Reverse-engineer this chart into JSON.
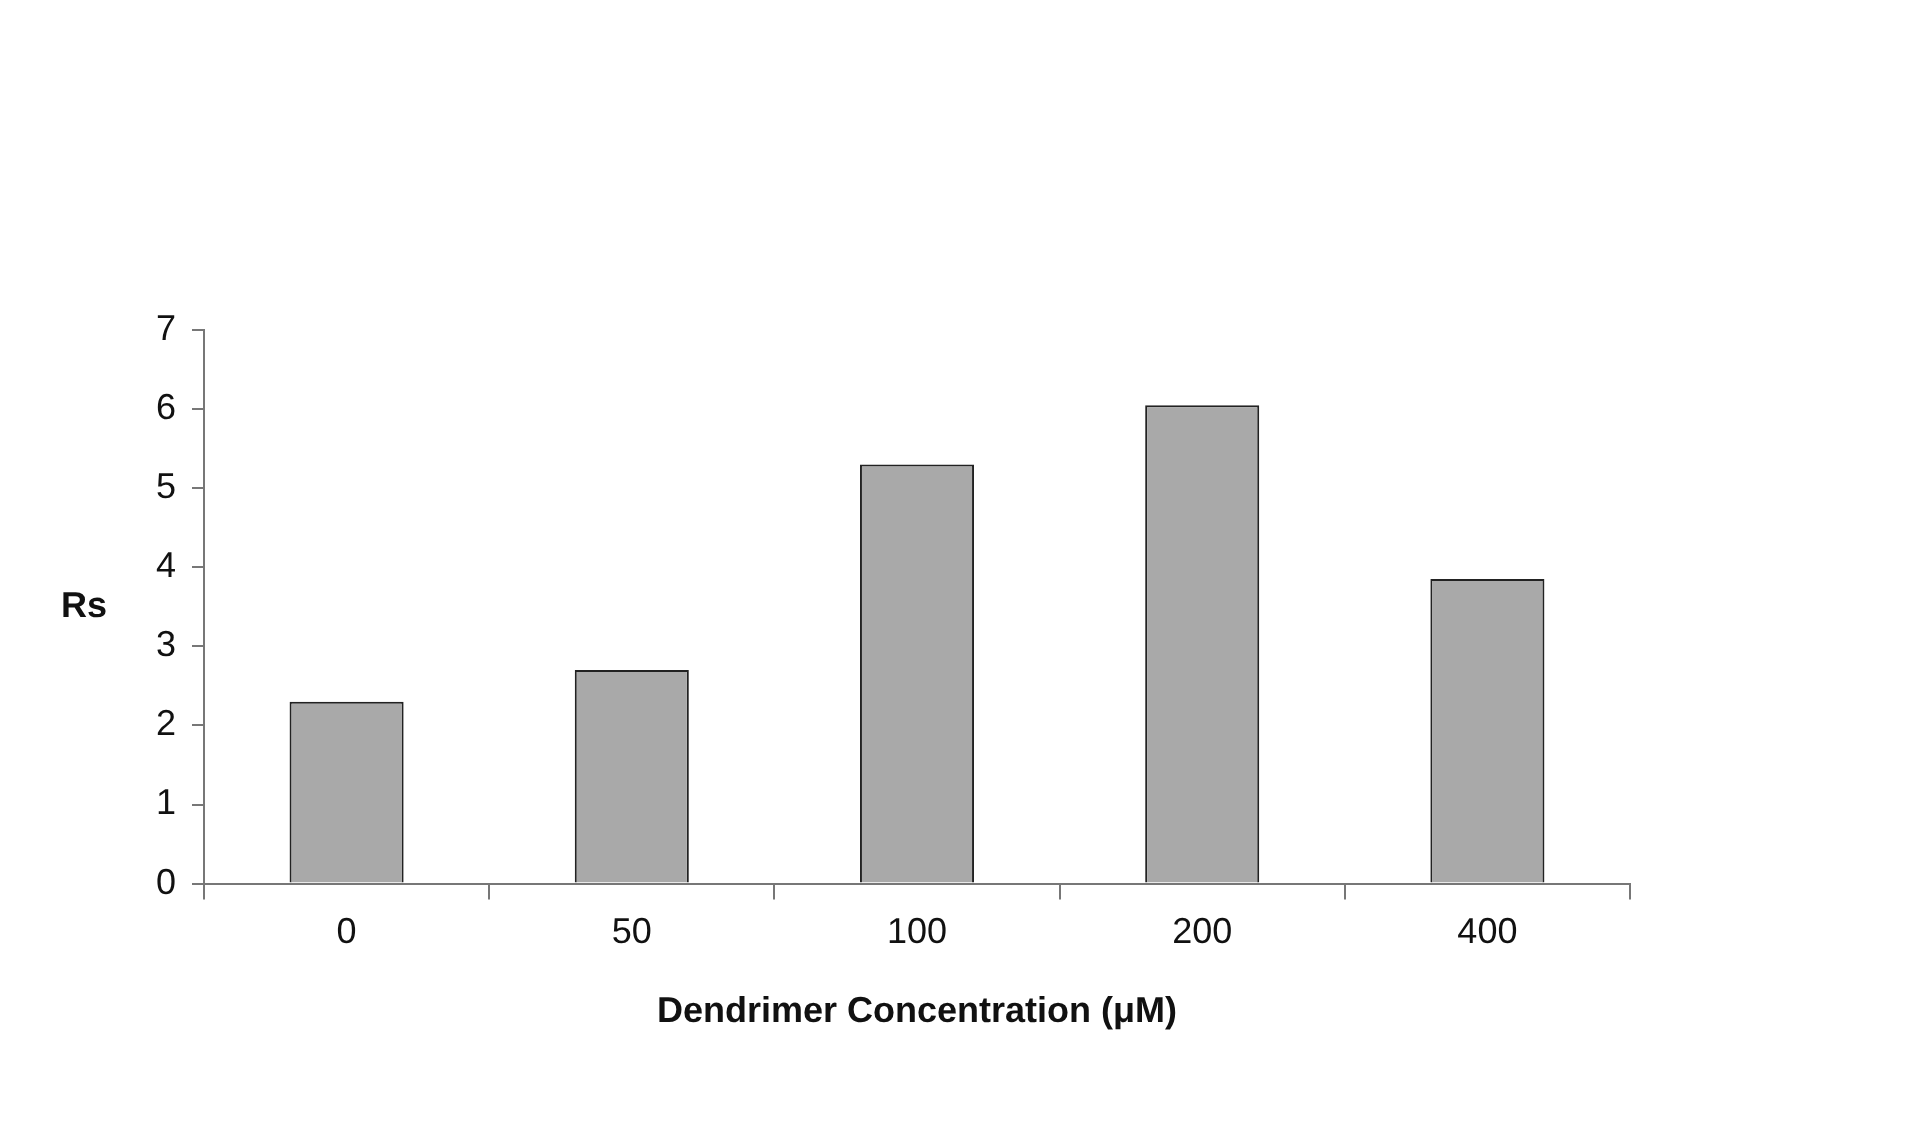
{
  "chart_data": {
    "type": "bar",
    "xlabel": "Dendrimer Concentration (μM)",
    "ylabel": "Rs",
    "categories": [
      "0",
      "50",
      "100",
      "200",
      "400"
    ],
    "values": [
      2.3,
      2.7,
      5.3,
      6.05,
      3.85
    ],
    "color": "#a9a9a9",
    "ylim": [
      0,
      7
    ],
    "yticks": [
      0,
      1,
      2,
      3,
      4,
      5,
      6,
      7
    ],
    "legend": false
  }
}
